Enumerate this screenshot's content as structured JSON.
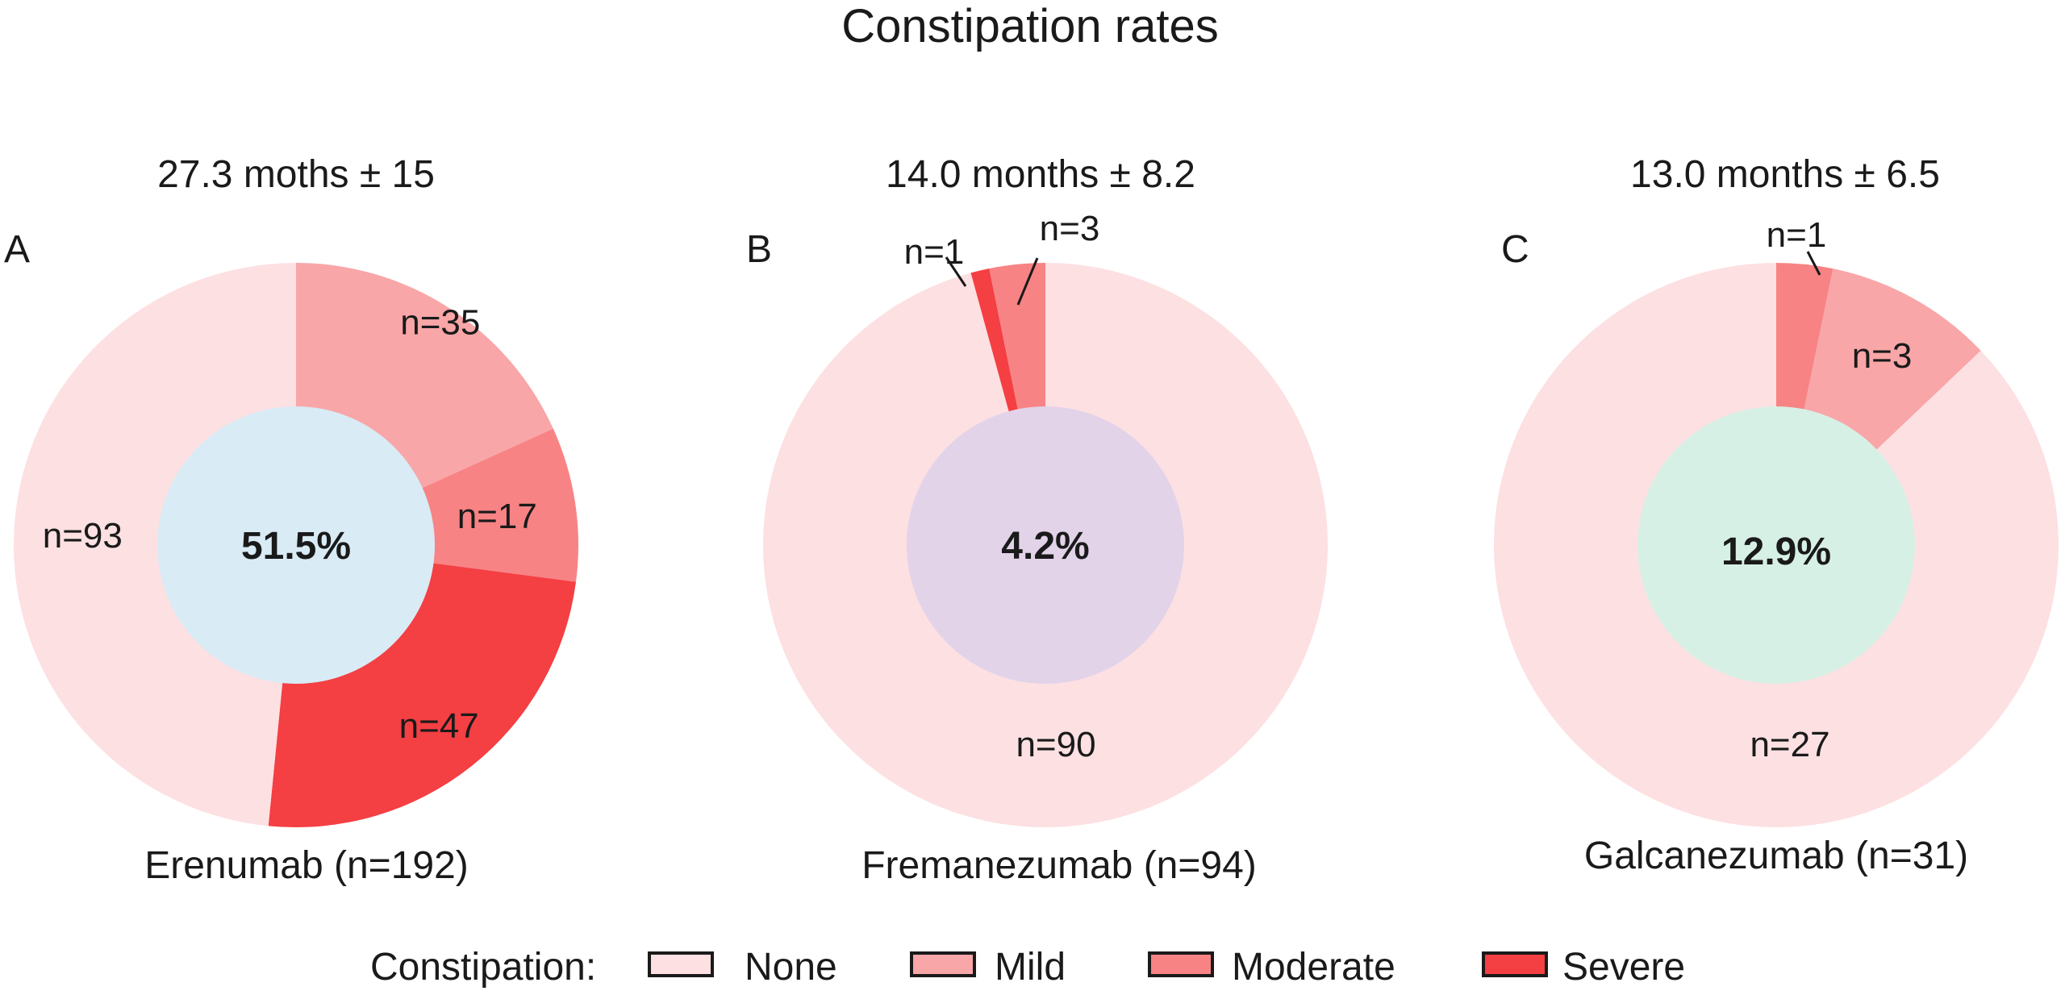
{
  "title": "Constipation rates",
  "legend": {
    "title": "Constipation:",
    "items": [
      {
        "label": "None",
        "color": "#fde0e2"
      },
      {
        "label": "Mild",
        "color": "#f9a6a8"
      },
      {
        "label": "Moderate",
        "color": "#f78385"
      },
      {
        "label": "Severe",
        "color": "#f43f43"
      }
    ]
  },
  "chart_data": [
    {
      "type": "pie",
      "panel": "A",
      "subtitle": "27.3 moths ± 15",
      "caption": "Erenumab (n=192)",
      "center_label": "51.5%",
      "center_color": "#d9ebf5",
      "series": [
        {
          "category": "Mild",
          "value": 35,
          "label": "n=35"
        },
        {
          "category": "Moderate",
          "value": 17,
          "label": "n=17"
        },
        {
          "category": "Severe",
          "value": 47,
          "label": "n=47"
        },
        {
          "category": "None",
          "value": 93,
          "label": "n=93"
        }
      ]
    },
    {
      "type": "pie",
      "panel": "B",
      "subtitle": "14.0 months ± 8.2",
      "caption": "Fremanezumab (n=94)",
      "center_label": "4.2%",
      "center_color": "#e2d3e9",
      "series": [
        {
          "category": "None",
          "value": 90,
          "label": "n=90"
        },
        {
          "category": "Severe",
          "value": 1,
          "label": "n=1"
        },
        {
          "category": "Moderate",
          "value": 3,
          "label": "n=3"
        }
      ]
    },
    {
      "type": "pie",
      "panel": "C",
      "subtitle": "13.0 months ± 6.5",
      "caption": "Galcanezumab (n=31)",
      "center_label": "12.9%",
      "center_color": "#d7f0e6",
      "series": [
        {
          "category": "Moderate",
          "value": 1,
          "label": "n=1"
        },
        {
          "category": "Mild",
          "value": 3,
          "label": "n=3"
        },
        {
          "category": "None",
          "value": 27,
          "label": "n=27"
        }
      ]
    }
  ]
}
